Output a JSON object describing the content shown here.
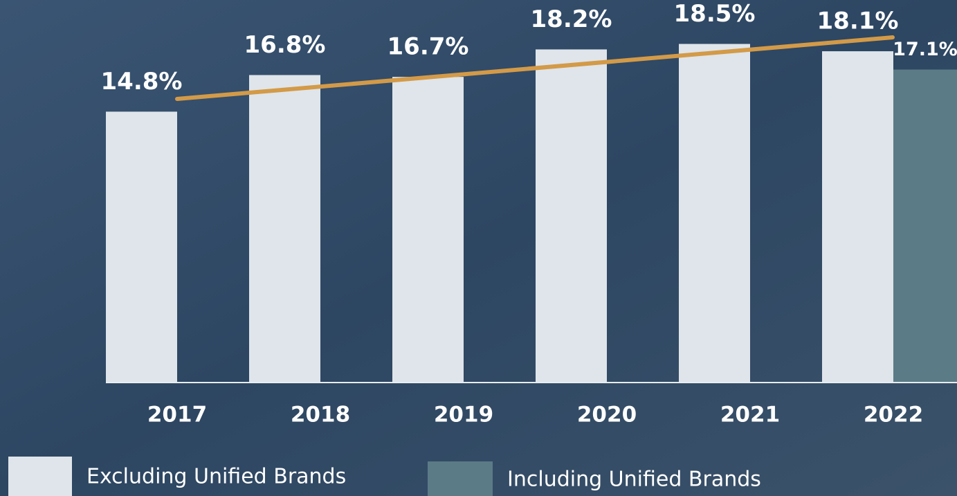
{
  "chart_data": {
    "type": "bar",
    "categories": [
      "2017",
      "2018",
      "2019",
      "2020",
      "2021",
      "2022"
    ],
    "series": [
      {
        "name": "Excluding Unified Brands",
        "color": "#dfe5ea",
        "values": [
          14.8,
          16.8,
          16.7,
          18.2,
          18.5,
          18.1
        ],
        "value_labels": [
          "14.8%",
          "16.8%",
          "16.7%",
          "18.2%",
          "18.5%",
          "18.1%"
        ]
      },
      {
        "name": "Including Unified Brands",
        "color": "#5b7b86",
        "values": [
          null,
          null,
          null,
          null,
          null,
          17.1
        ],
        "value_labels": [
          null,
          null,
          null,
          null,
          null,
          "17.1%"
        ]
      }
    ],
    "ylim": [
      0,
      20.9
    ]
  }
}
